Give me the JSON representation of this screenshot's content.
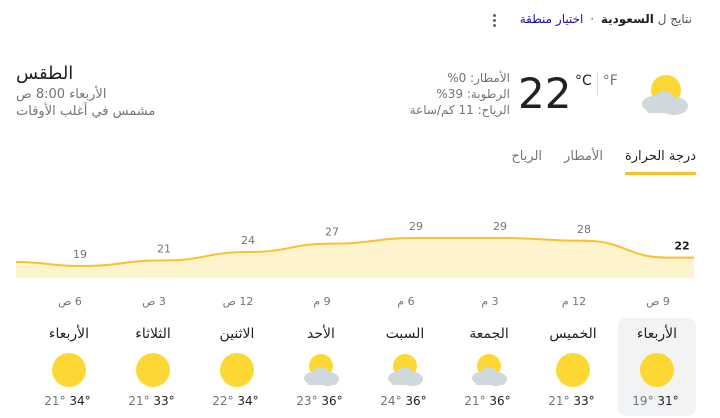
{
  "header": {
    "results_prefix": "نتايج ل",
    "location_bold": "السعودية",
    "separator": "·",
    "choose_region": "اختيار منطقة"
  },
  "current": {
    "title": "الطقس",
    "datetime": "الأربعاء 8:00 ص",
    "condition": "مشمس في أغلب الأوقات",
    "temperature": "22",
    "unit_c": "°C",
    "unit_f": "°F",
    "precipitation": "الأمطار: 0%",
    "humidity": "الرطوبة: 39%",
    "wind": "الرياح: 11 كم/ساعة",
    "icon": "partly-cloudy-icon"
  },
  "tabs": [
    {
      "label": "درجة الحرارة",
      "active": true
    },
    {
      "label": "الأمطار",
      "active": false
    },
    {
      "label": "الرياح",
      "active": false
    }
  ],
  "chart_data": {
    "type": "area",
    "x": [
      "9 ص",
      "12 م",
      "3 م",
      "6 م",
      "9 م",
      "12 ص",
      "3 ص",
      "6 ص"
    ],
    "values": [
      22,
      28,
      29,
      29,
      27,
      24,
      21,
      19
    ],
    "title": "",
    "xlabel": "",
    "ylabel": "",
    "colors": {
      "line": "#fbc02d",
      "fill": "#fdf3cc"
    }
  },
  "days": [
    {
      "name": "الأربعاء",
      "high": "31°",
      "low": "19°",
      "icon": "sun-icon",
      "active": true
    },
    {
      "name": "الخميس",
      "high": "33°",
      "low": "21°",
      "icon": "sun-icon",
      "active": false
    },
    {
      "name": "الجمعة",
      "high": "36°",
      "low": "21°",
      "icon": "partly-cloudy-icon",
      "active": false
    },
    {
      "name": "السبت",
      "high": "36°",
      "low": "24°",
      "icon": "partly-cloudy-icon",
      "active": false
    },
    {
      "name": "الأحد",
      "high": "36°",
      "low": "23°",
      "icon": "partly-cloudy-icon",
      "active": false
    },
    {
      "name": "الاثنين",
      "high": "34°",
      "low": "22°",
      "icon": "sun-icon",
      "active": false
    },
    {
      "name": "الثلاثاء",
      "high": "33°",
      "low": "21°",
      "icon": "sun-icon",
      "active": false
    },
    {
      "name": "الأربعاء",
      "high": "34°",
      "low": "21°",
      "icon": "sun-icon",
      "active": false
    }
  ]
}
